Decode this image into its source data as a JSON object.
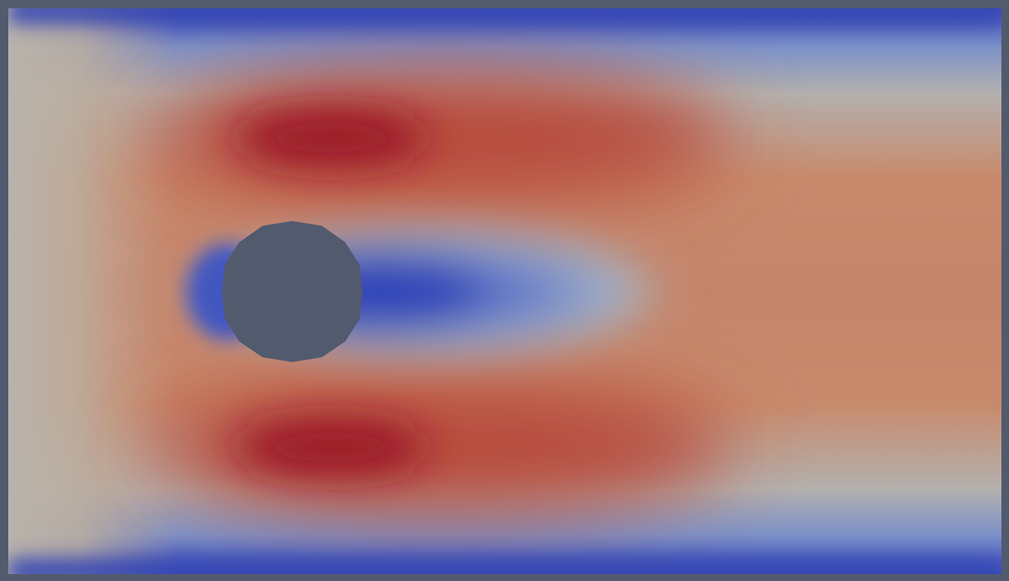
{
  "scene": {
    "background_color": "#525a6e",
    "colormap": "Cool to Warm",
    "colormap_stops": [
      "#3b4cc0",
      "#aab5c3",
      "#c98a6d",
      "#b4352d",
      "#8e0b22"
    ],
    "obstacle": {
      "shape": "cylinder-cross-section",
      "color": "#525a6e"
    },
    "domain": {
      "shape": "rectangular-channel",
      "flow_direction": "left-to-right"
    }
  }
}
